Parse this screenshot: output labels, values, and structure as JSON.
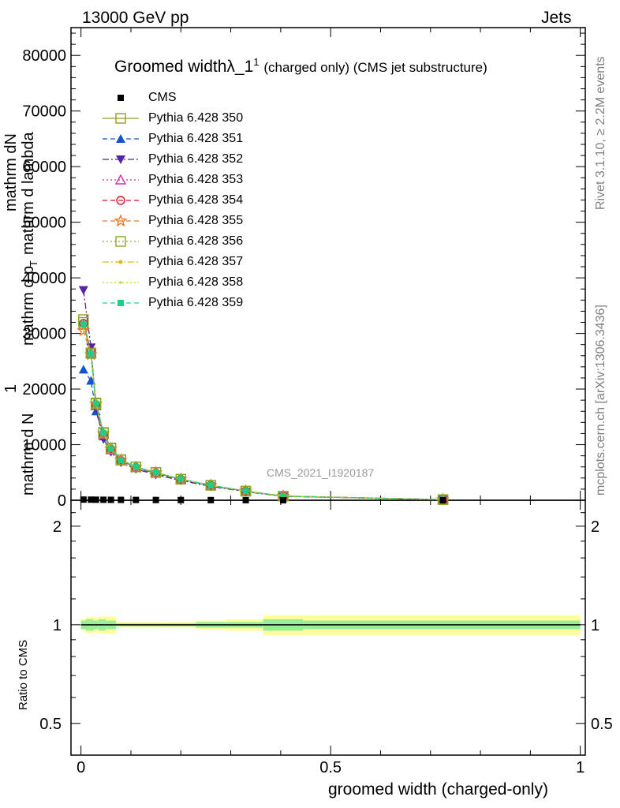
{
  "header": {
    "energy_label": "13000 GeV pp",
    "process_label": "Jets"
  },
  "side_labels": {
    "rivet": "Rivet 3.1.10, ≥ 2.2M events",
    "mcplots": "mcplots.cern.ch [arXiv:1306.3436]"
  },
  "watermark": "CMS_2021_I1920187",
  "chart_data": {
    "type": "line",
    "title_main": "Groomed width",
    "title_lambda": "λ_1",
    "title_sup": "1",
    "title_rest": "(charged only) (CMS jet substructure)",
    "xlabel": "groomed width (charged-only)",
    "ylabel_upper": "1 / mathrm d N mathrm d N / mathrm d p_T mathrm d lambda",
    "ylabel_upper_parts": {
      "one": "1",
      "denom": "mathrm d N",
      "frac_num_a": "mathrm dN",
      "frac_den_a": "mathrm d p",
      "frac_den_sub": "T",
      "frac_den_b": "mathrm d lambda"
    },
    "ylabel_ratio": "Ratio to CMS",
    "xlim": [
      -0.02,
      1.01
    ],
    "ylim_main": [
      0,
      85000
    ],
    "ylim_ratio": [
      0.4,
      2.4
    ],
    "y_scale_ratio": "log",
    "xticks": [
      0,
      0.5,
      1
    ],
    "xtick_labels": [
      "0",
      "0.5",
      "1"
    ],
    "yticks_main": [
      0,
      10000,
      20000,
      30000,
      40000,
      50000,
      60000,
      70000,
      80000
    ],
    "ytick_labels_main": [
      "0",
      "10000",
      "20000",
      "30000",
      "40000",
      "50000",
      "60000",
      "70000",
      "80000"
    ],
    "yticks_ratio": [
      0.5,
      1,
      2
    ],
    "ytick_labels_ratio": [
      "0.5",
      "1",
      "2"
    ],
    "grid": false,
    "legend_position": "top-left",
    "x": [
      0.005,
      0.02,
      0.03,
      0.045,
      0.06,
      0.08,
      0.11,
      0.15,
      0.2,
      0.26,
      0.33,
      0.405,
      0.725
    ],
    "cms": {
      "name": "CMS",
      "values": [
        120,
        110,
        100,
        90,
        80,
        70,
        60,
        50,
        40,
        30,
        20,
        10,
        5
      ]
    },
    "series": [
      {
        "name": "Pythia 6.428 350",
        "color": "#9a9a2a",
        "marker": "square-open",
        "dash": "solid",
        "values": [
          32500,
          26500,
          17500,
          12200,
          9400,
          7300,
          6000,
          5000,
          3800,
          2700,
          1650,
          750,
          120
        ]
      },
      {
        "name": "Pythia 6.428 351",
        "color": "#1155cc",
        "marker": "triangle-up",
        "dash": "dashed",
        "values": [
          23500,
          21500,
          16000,
          11500,
          9000,
          7000,
          5800,
          4800,
          3700,
          2600,
          1600,
          720,
          115
        ]
      },
      {
        "name": "Pythia 6.428 352",
        "color": "#5522aa",
        "marker": "triangle-down",
        "dash": "dashdot",
        "values": [
          37800,
          27500,
          16500,
          11000,
          8700,
          6800,
          5600,
          4600,
          3550,
          2500,
          1550,
          700,
          110
        ]
      },
      {
        "name": "Pythia 6.428 353",
        "color": "#cc33aa",
        "marker": "triangle-up-open",
        "dash": "dotted",
        "values": [
          31500,
          26500,
          17000,
          11800,
          9100,
          7100,
          5900,
          4900,
          3750,
          2650,
          1620,
          730,
          118
        ]
      },
      {
        "name": "Pythia 6.428 354",
        "color": "#dd1122",
        "marker": "circle-open",
        "dash": "dashed",
        "values": [
          31800,
          26700,
          17200,
          11900,
          9200,
          7150,
          5900,
          4900,
          3760,
          2660,
          1630,
          735,
          118
        ]
      },
      {
        "name": "Pythia 6.428 355",
        "color": "#ee7722",
        "marker": "star-open",
        "dash": "dashed",
        "values": [
          30500,
          26200,
          17300,
          12000,
          9250,
          7200,
          5950,
          4950,
          3780,
          2680,
          1640,
          740,
          119
        ]
      },
      {
        "name": "Pythia 6.428 356",
        "color": "#88aa22",
        "marker": "square-open",
        "dash": "dotted",
        "values": [
          32000,
          26400,
          17400,
          12100,
          9300,
          7250,
          5980,
          4980,
          3790,
          2690,
          1645,
          745,
          120
        ]
      },
      {
        "name": "Pythia 6.428 357",
        "color": "#ddbb11",
        "marker": "dot",
        "dash": "dashdot",
        "values": [
          31600,
          26300,
          17350,
          12050,
          9280,
          7230,
          5960,
          4960,
          3780,
          2680,
          1640,
          740,
          119
        ]
      },
      {
        "name": "Pythia 6.428 358",
        "color": "#bbdd11",
        "marker": "dot-small",
        "dash": "dotted",
        "values": [
          31400,
          26200,
          17300,
          12000,
          9260,
          7220,
          5950,
          4950,
          3770,
          2670,
          1635,
          738,
          118
        ]
      },
      {
        "name": "Pythia 6.428 359",
        "color": "#22cc88",
        "marker": "square",
        "dash": "dashed",
        "values": [
          31700,
          26350,
          17380,
          12080,
          9290,
          7240,
          5970,
          4970,
          3785,
          2685,
          1642,
          742,
          119
        ]
      }
    ],
    "ratio_band": {
      "x_edges": [
        0,
        0.01,
        0.025,
        0.035,
        0.05,
        0.07,
        0.09,
        0.13,
        0.17,
        0.23,
        0.29,
        0.365,
        0.445,
        1.0
      ],
      "inner": [
        0.03,
        0.04,
        0.03,
        0.04,
        0.03,
        0.01,
        0.01,
        0.01,
        0.01,
        0.02,
        0.02,
        0.04,
        0.03
      ],
      "outer": [
        0.04,
        0.06,
        0.05,
        0.06,
        0.06,
        0.02,
        0.02,
        0.02,
        0.02,
        0.03,
        0.04,
        0.07,
        0.07
      ]
    }
  }
}
